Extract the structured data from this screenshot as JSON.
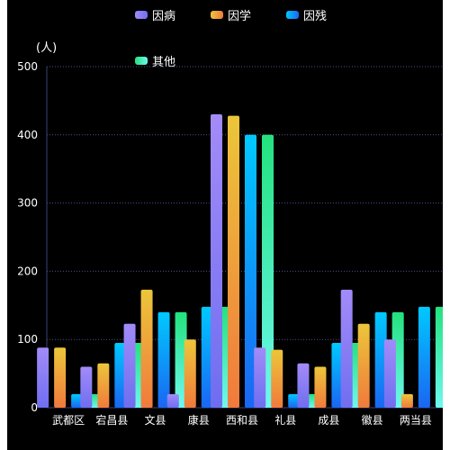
{
  "chart_data": {
    "type": "bar",
    "y_unit_label": "(人)",
    "categories": [
      "武都区",
      "宕昌县",
      "文县",
      "康县",
      "西和县",
      "礼县",
      "成县",
      "徽县",
      "两当县"
    ],
    "series": [
      {
        "name": "因病",
        "values": [
          88,
          60,
          123,
          20,
          430,
          88,
          65,
          173,
          100
        ]
      },
      {
        "name": "因学",
        "values": [
          88,
          65,
          173,
          100,
          428,
          85,
          60,
          123,
          20
        ]
      },
      {
        "name": "因残",
        "values": [
          20,
          95,
          140,
          148,
          400,
          20,
          95,
          140,
          148
        ]
      },
      {
        "name": "其他",
        "values": [
          20,
          95,
          140,
          148,
          400,
          20,
          95,
          140,
          148
        ]
      }
    ],
    "ylim": [
      0,
      500
    ],
    "y_ticks": [
      0,
      100,
      200,
      300,
      400,
      500
    ],
    "grid": true,
    "legend_position": "top-center",
    "colors": {
      "因病": [
        "#a38bf8",
        "#6f6ef0"
      ],
      "因学": [
        "#ecc63a",
        "#f07a3c"
      ],
      "因残": [
        "#00c9ff",
        "#1a66f2"
      ],
      "其他": [
        "#23e27e",
        "#6ef8f0"
      ]
    }
  }
}
